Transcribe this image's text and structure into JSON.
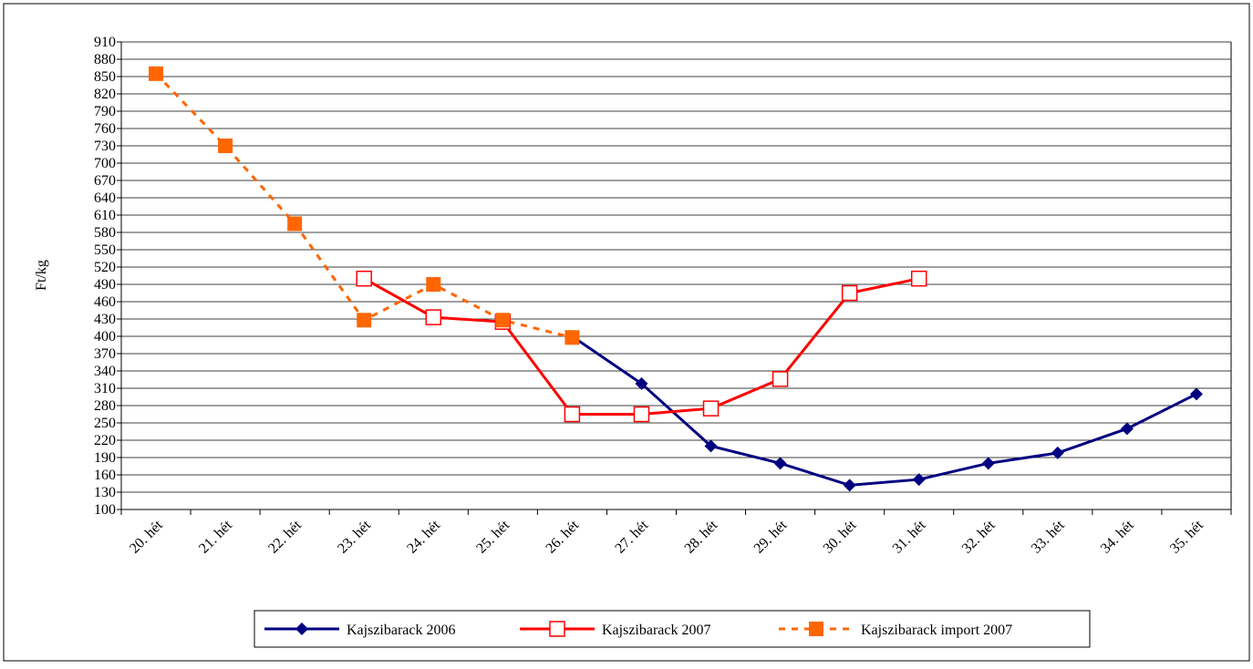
{
  "chart_data": {
    "type": "line",
    "y_label": "Ft/kg",
    "categories": [
      "20. hét",
      "21. hét",
      "22. hét",
      "23. hét",
      "24. hét",
      "25. hét",
      "26. hét",
      "27. hét",
      "28. hét",
      "29. hét",
      "30. hét",
      "31. hét",
      "32. hét",
      "33. hét",
      "34. hét",
      "35. hét"
    ],
    "series": [
      {
        "name": "Kajszibarack 2006",
        "color": "#000080",
        "marker": "diamond",
        "dash": false,
        "values": [
          null,
          null,
          null,
          null,
          null,
          null,
          400,
          318,
          210,
          180,
          142,
          152,
          180,
          198,
          240,
          300
        ]
      },
      {
        "name": "Kajszibarack 2007",
        "color": "#ff0000",
        "marker": "open-square",
        "dash": false,
        "values": [
          null,
          null,
          null,
          500,
          433,
          425,
          265,
          265,
          275,
          326,
          475,
          500,
          null,
          null,
          null,
          null
        ]
      },
      {
        "name": "Kajszibarack import 2007",
        "color": "#ff6600",
        "marker": "square",
        "dash": true,
        "values": [
          855,
          730,
          595,
          428,
          490,
          428,
          398,
          null,
          null,
          null,
          null,
          null,
          null,
          null,
          null,
          null
        ]
      }
    ],
    "ylim": [
      100,
      910
    ],
    "yticks": [
      100,
      130,
      160,
      190,
      220,
      250,
      280,
      310,
      340,
      370,
      400,
      430,
      460,
      490,
      520,
      550,
      580,
      610,
      640,
      670,
      700,
      730,
      760,
      790,
      820,
      850,
      880,
      910
    ],
    "grid": true,
    "legend": "bottom"
  }
}
